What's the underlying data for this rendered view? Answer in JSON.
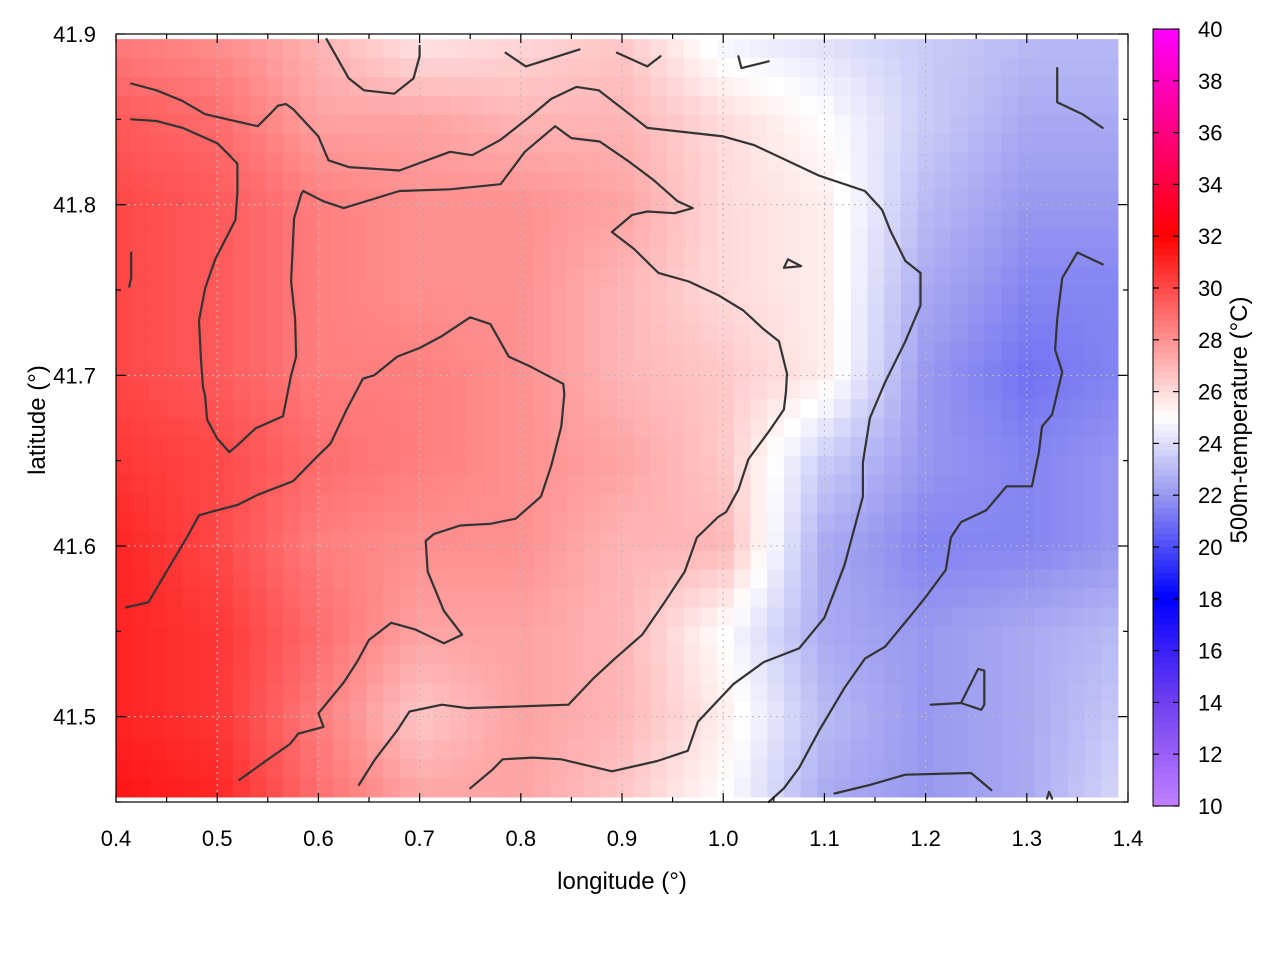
{
  "chart_data": {
    "type": "heatmap",
    "xlabel": "longitude (°)",
    "ylabel": "latitude (°)",
    "colorbar_label": "500m-temperature (°C)",
    "xlim": [
      0.4,
      1.4
    ],
    "ylim": [
      41.45,
      41.9
    ],
    "x_ticks": [
      "0.4",
      "0.5",
      "0.6",
      "0.7",
      "0.8",
      "0.9",
      "1.0",
      "1.1",
      "1.2",
      "1.3",
      "1.4"
    ],
    "y_ticks": [
      "41.5",
      "41.6",
      "41.7",
      "41.8",
      "41.9"
    ],
    "x_tick_values": [
      0.4,
      0.5,
      0.6,
      0.7,
      0.8,
      0.9,
      1.0,
      1.1,
      1.2,
      1.3,
      1.4
    ],
    "y_tick_values": [
      41.5,
      41.6,
      41.7,
      41.8,
      41.9
    ],
    "colorbar_range": [
      10,
      40
    ],
    "colorbar_ticks": [
      "10",
      "12",
      "14",
      "16",
      "18",
      "20",
      "22",
      "24",
      "26",
      "28",
      "30",
      "32",
      "34",
      "36",
      "38",
      "40"
    ],
    "colorbar_tick_values": [
      10,
      12,
      14,
      16,
      18,
      20,
      22,
      24,
      26,
      28,
      30,
      32,
      34,
      36,
      38,
      40
    ],
    "colormap": [
      {
        "value": 10,
        "color": "#c080ff"
      },
      {
        "value": 14,
        "color": "#7040f0"
      },
      {
        "value": 18,
        "color": "#0000ff"
      },
      {
        "value": 22,
        "color": "#9898f0"
      },
      {
        "value": 25,
        "color": "#ffffff"
      },
      {
        "value": 28,
        "color": "#ff9090"
      },
      {
        "value": 32,
        "color": "#ff0000"
      },
      {
        "value": 36,
        "color": "#ff0080"
      },
      {
        "value": 40,
        "color": "#ff00ff"
      }
    ],
    "temperature_field": {
      "x": [
        0.4,
        0.5,
        0.6,
        0.7,
        0.8,
        0.9,
        1.0,
        1.1,
        1.2,
        1.3,
        1.4
      ],
      "y": [
        41.9,
        41.85,
        41.8,
        41.75,
        41.7,
        41.65,
        41.6,
        41.55,
        41.5,
        41.45
      ],
      "values": [
        [
          28.5,
          28.0,
          27.0,
          25.5,
          26.0,
          26.5,
          24.5,
          24.0,
          23.5,
          23.0,
          23.0
        ],
        [
          29.5,
          29.0,
          27.5,
          27.5,
          27.0,
          27.0,
          26.0,
          25.0,
          23.5,
          22.5,
          22.5
        ],
        [
          30.0,
          29.5,
          28.5,
          28.0,
          28.0,
          27.5,
          26.0,
          25.5,
          23.0,
          22.0,
          22.0
        ],
        [
          30.0,
          29.5,
          28.5,
          28.0,
          28.0,
          27.0,
          26.0,
          25.5,
          22.5,
          21.5,
          21.5
        ],
        [
          30.0,
          29.5,
          28.5,
          28.5,
          28.0,
          27.0,
          26.5,
          25.5,
          22.0,
          21.0,
          21.5
        ],
        [
          30.5,
          30.0,
          29.0,
          28.5,
          28.0,
          27.5,
          26.5,
          23.5,
          22.0,
          21.5,
          22.0
        ],
        [
          31.0,
          30.0,
          28.5,
          28.0,
          28.0,
          27.0,
          27.0,
          22.5,
          21.5,
          21.5,
          22.0
        ],
        [
          31.0,
          30.5,
          29.0,
          27.5,
          27.5,
          27.0,
          25.0,
          22.5,
          22.0,
          22.5,
          23.0
        ],
        [
          31.0,
          30.5,
          28.5,
          26.5,
          27.5,
          27.0,
          25.5,
          23.0,
          22.0,
          22.5,
          23.5
        ],
        [
          31.5,
          31.0,
          29.0,
          27.5,
          27.5,
          26.5,
          25.0,
          22.5,
          22.0,
          22.5,
          24.0
        ]
      ]
    },
    "contours": [
      [
        [
          0.415,
          41.871
        ],
        [
          0.44,
          41.867
        ],
        [
          0.465,
          41.861
        ],
        [
          0.488,
          41.853
        ],
        [
          0.54,
          41.846
        ],
        [
          0.552,
          41.853
        ],
        [
          0.56,
          41.858
        ],
        [
          0.568,
          41.859
        ],
        [
          0.575,
          41.856
        ],
        [
          0.6,
          41.84
        ],
        [
          0.61,
          41.826
        ],
        [
          0.63,
          41.822
        ],
        [
          0.68,
          41.82
        ],
        [
          0.73,
          41.831
        ],
        [
          0.752,
          41.829
        ],
        [
          0.78,
          41.838
        ],
        [
          0.81,
          41.852
        ],
        [
          0.83,
          41.862
        ],
        [
          0.855,
          41.869
        ],
        [
          0.877,
          41.867
        ],
        [
          0.925,
          41.845
        ],
        [
          1.0,
          41.84
        ],
        [
          1.03,
          41.835
        ],
        [
          1.095,
          41.817
        ],
        [
          1.14,
          41.808
        ],
        [
          1.157,
          41.797
        ],
        [
          1.165,
          41.785
        ],
        [
          1.18,
          41.767
        ],
        [
          1.195,
          41.76
        ],
        [
          1.195,
          41.741
        ],
        [
          1.18,
          41.72
        ],
        [
          1.16,
          41.696
        ],
        [
          1.145,
          41.675
        ],
        [
          1.138,
          41.649
        ],
        [
          1.138,
          41.629
        ],
        [
          1.12,
          41.589
        ],
        [
          1.1,
          41.558
        ],
        [
          1.075,
          41.54
        ],
        [
          1.04,
          41.532
        ],
        [
          1.01,
          41.519
        ],
        [
          0.975,
          41.497
        ],
        [
          0.965,
          41.48
        ],
        [
          0.935,
          41.474
        ],
        [
          0.89,
          41.468
        ],
        [
          0.84,
          41.475
        ],
        [
          0.812,
          41.476
        ],
        [
          0.782,
          41.475
        ],
        [
          0.772,
          41.469
        ],
        [
          0.75,
          41.458
        ]
      ],
      [
        [
          0.415,
          41.85
        ],
        [
          0.44,
          41.849
        ],
        [
          0.466,
          41.845
        ],
        [
          0.5,
          41.836
        ],
        [
          0.512,
          41.829
        ],
        [
          0.52,
          41.824
        ],
        [
          0.52,
          41.807
        ],
        [
          0.518,
          41.791
        ],
        [
          0.498,
          41.768
        ],
        [
          0.488,
          41.751
        ],
        [
          0.482,
          41.732
        ],
        [
          0.484,
          41.709
        ],
        [
          0.486,
          41.693
        ],
        [
          0.488,
          41.688
        ],
        [
          0.49,
          41.674
        ],
        [
          0.5,
          41.663
        ],
        [
          0.512,
          41.655
        ],
        [
          0.52,
          41.659
        ],
        [
          0.538,
          41.669
        ],
        [
          0.565,
          41.676
        ],
        [
          0.573,
          41.7
        ],
        [
          0.578,
          41.711
        ],
        [
          0.577,
          41.733
        ],
        [
          0.573,
          41.755
        ],
        [
          0.576,
          41.792
        ],
        [
          0.583,
          41.806
        ],
        [
          0.585,
          41.808
        ],
        [
          0.605,
          41.802
        ],
        [
          0.625,
          41.798
        ],
        [
          0.68,
          41.808
        ],
        [
          0.73,
          41.809
        ],
        [
          0.78,
          41.812
        ],
        [
          0.804,
          41.831
        ],
        [
          0.834,
          41.846
        ],
        [
          0.85,
          41.839
        ],
        [
          0.878,
          41.837
        ],
        [
          0.905,
          41.826
        ],
        [
          0.93,
          41.815
        ],
        [
          0.955,
          41.802
        ],
        [
          0.97,
          41.798
        ],
        [
          0.952,
          41.795
        ],
        [
          0.925,
          41.796
        ],
        [
          0.91,
          41.794
        ],
        [
          0.89,
          41.784
        ],
        [
          0.912,
          41.774
        ],
        [
          0.936,
          41.76
        ],
        [
          0.966,
          41.755
        ],
        [
          0.995,
          41.747
        ],
        [
          1.02,
          41.738
        ],
        [
          1.04,
          41.727
        ],
        [
          1.055,
          41.72
        ],
        [
          1.063,
          41.701
        ],
        [
          1.062,
          41.69
        ],
        [
          1.06,
          41.68
        ],
        [
          1.045,
          41.667
        ],
        [
          1.025,
          41.651
        ],
        [
          1.015,
          41.633
        ],
        [
          1.003,
          41.62
        ],
        [
          0.995,
          41.617
        ],
        [
          0.974,
          41.605
        ],
        [
          0.962,
          41.585
        ],
        [
          0.942,
          41.567
        ],
        [
          0.92,
          41.548
        ],
        [
          0.893,
          41.534
        ],
        [
          0.871,
          41.522
        ],
        [
          0.847,
          41.507
        ],
        [
          0.8,
          41.506
        ],
        [
          0.747,
          41.505
        ],
        [
          0.722,
          41.507
        ],
        [
          0.69,
          41.503
        ],
        [
          0.678,
          41.492
        ],
        [
          0.656,
          41.475
        ],
        [
          0.64,
          41.46
        ]
      ],
      [
        [
          0.41,
          41.564
        ],
        [
          0.432,
          41.567
        ],
        [
          0.445,
          41.58
        ],
        [
          0.47,
          41.605
        ],
        [
          0.482,
          41.618
        ],
        [
          0.5,
          41.621
        ],
        [
          0.52,
          41.624
        ],
        [
          0.54,
          41.63
        ],
        [
          0.575,
          41.638
        ],
        [
          0.598,
          41.652
        ],
        [
          0.612,
          41.66
        ],
        [
          0.628,
          41.68
        ],
        [
          0.644,
          41.698
        ],
        [
          0.655,
          41.7
        ],
        [
          0.678,
          41.711
        ],
        [
          0.7,
          41.716
        ],
        [
          0.722,
          41.723
        ],
        [
          0.75,
          41.734
        ],
        [
          0.77,
          41.73
        ],
        [
          0.788,
          41.711
        ],
        [
          0.81,
          41.705
        ],
        [
          0.842,
          41.695
        ],
        [
          0.843,
          41.689
        ],
        [
          0.84,
          41.67
        ],
        [
          0.83,
          41.647
        ],
        [
          0.82,
          41.629
        ],
        [
          0.795,
          41.616
        ],
        [
          0.77,
          41.613
        ],
        [
          0.74,
          41.612
        ],
        [
          0.714,
          41.607
        ],
        [
          0.706,
          41.603
        ],
        [
          0.708,
          41.585
        ],
        [
          0.724,
          41.562
        ],
        [
          0.742,
          41.548
        ],
        [
          0.724,
          41.543
        ],
        [
          0.696,
          41.551
        ],
        [
          0.672,
          41.555
        ],
        [
          0.65,
          41.545
        ],
        [
          0.638,
          41.532
        ],
        [
          0.625,
          41.52
        ],
        [
          0.6,
          41.502
        ],
        [
          0.605,
          41.494
        ],
        [
          0.58,
          41.49
        ],
        [
          0.572,
          41.484
        ],
        [
          0.555,
          41.477
        ],
        [
          0.522,
          41.463
        ]
      ],
      [
        [
          0.608,
          41.897
        ],
        [
          0.63,
          41.874
        ],
        [
          0.645,
          41.867
        ],
        [
          0.675,
          41.865
        ],
        [
          0.694,
          41.874
        ],
        [
          0.7,
          41.887
        ],
        [
          0.7,
          41.893
        ]
      ],
      [
        [
          0.785,
          41.889
        ],
        [
          0.805,
          41.881
        ],
        [
          0.858,
          41.891
        ]
      ],
      [
        [
          0.895,
          41.889
        ],
        [
          0.925,
          41.881
        ],
        [
          0.938,
          41.887
        ]
      ],
      [
        [
          1.015,
          41.887
        ],
        [
          1.018,
          41.88
        ],
        [
          1.045,
          41.884
        ]
      ],
      [
        [
          1.33,
          41.88
        ],
        [
          1.33,
          41.86
        ],
        [
          1.355,
          41.853
        ],
        [
          1.375,
          41.845
        ]
      ],
      [
        [
          0.415,
          41.772
        ],
        [
          0.415,
          41.757
        ],
        [
          0.413,
          41.752
        ]
      ],
      [
        [
          1.06,
          41.763
        ],
        [
          1.077,
          41.764
        ],
        [
          1.064,
          41.768
        ],
        [
          1.06,
          41.763
        ]
      ],
      [
        [
          1.11,
          41.455
        ],
        [
          1.145,
          41.46
        ],
        [
          1.18,
          41.466
        ],
        [
          1.245,
          41.467
        ],
        [
          1.265,
          41.457
        ]
      ],
      [
        [
          1.205,
          41.507
        ],
        [
          1.235,
          41.508
        ],
        [
          1.255,
          41.504
        ],
        [
          1.258,
          41.507
        ],
        [
          1.258,
          41.527
        ],
        [
          1.252,
          41.528
        ],
        [
          1.235,
          41.508
        ]
      ],
      [
        [
          1.32,
          41.452
        ],
        [
          1.322,
          41.456
        ],
        [
          1.325,
          41.452
        ]
      ],
      [
        [
          1.375,
          41.765
        ],
        [
          1.35,
          41.772
        ],
        [
          1.335,
          41.757
        ],
        [
          1.33,
          41.733
        ],
        [
          1.328,
          41.715
        ],
        [
          1.335,
          41.702
        ],
        [
          1.325,
          41.677
        ],
        [
          1.315,
          41.67
        ],
        [
          1.312,
          41.655
        ],
        [
          1.305,
          41.635
        ],
        [
          1.28,
          41.635
        ],
        [
          1.26,
          41.621
        ],
        [
          1.235,
          41.614
        ],
        [
          1.225,
          41.605
        ],
        [
          1.22,
          41.586
        ],
        [
          1.2,
          41.57
        ],
        [
          1.185,
          41.559
        ],
        [
          1.16,
          41.541
        ],
        [
          1.14,
          41.534
        ],
        [
          1.12,
          41.517
        ],
        [
          1.095,
          41.492
        ],
        [
          1.075,
          41.47
        ],
        [
          1.06,
          41.458
        ],
        [
          1.045,
          41.45
        ]
      ]
    ]
  }
}
